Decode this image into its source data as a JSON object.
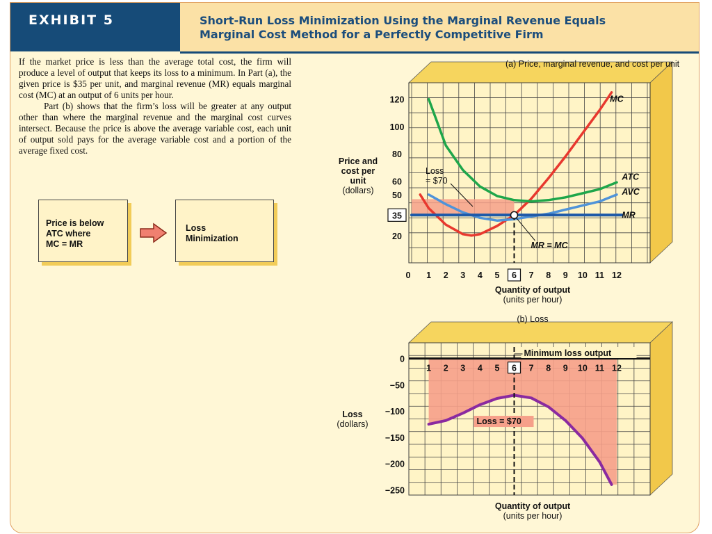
{
  "header": {
    "exhibit": "EXHIBIT 5",
    "title_line1": "Short-Run Loss Minimization Using the Marginal Revenue Equals",
    "title_line2": "Marginal Cost Method for a Perfectly Competitive Firm"
  },
  "text": {
    "para1": "If the market price is less than the average total cost, the firm will produce a level of output that keeps its loss to a minimum. In Part (a), the given price is $35 per unit, and marginal revenue (MR) equals marginal cost (MC) at an output of 6 units per hour.",
    "para2": "Part (b) shows that the firm’s loss will be greater at any output other than where the marginal revenue and the marginal cost curves intersect. Because the price is above the average variable cost, each unit of output sold pays for the average variable cost and a portion of the average fixed cost."
  },
  "flow": {
    "box1_l1": "Price is below",
    "box1_l2": "ATC where",
    "box1_l3": "MC = MR",
    "box2_l1": "Loss",
    "box2_l2": "Minimization"
  },
  "colors": {
    "mc": "#e8382e",
    "atc": "#1ea64a",
    "avc": "#4f93d9",
    "mr": "#1f5aa8",
    "loss": "#8a2aa0",
    "shade": "#f6a08a",
    "grid_bg": "#fff4c6",
    "box_shadow": "#f2cc58"
  },
  "chart_data": [
    {
      "type": "line",
      "title": "(a) Price, marginal revenue, and cost per unit",
      "xlabel_line1": "Quantity of output",
      "xlabel_line2": "(units per hour)",
      "ylabel_lines": [
        "Price and",
        "cost per",
        "unit",
        "(dollars)"
      ],
      "xlim": [
        0,
        12
      ],
      "ylim": [
        0,
        130
      ],
      "x_ticks": [
        "0",
        "1",
        "2",
        "3",
        "4",
        "5",
        "6",
        "7",
        "8",
        "9",
        "10",
        "11",
        "12"
      ],
      "y_ticks": [
        "20",
        "35",
        "50",
        "60",
        "80",
        "100",
        "120"
      ],
      "y_tick_values": [
        20,
        35,
        50,
        60,
        80,
        100,
        120
      ],
      "highlight_x": 6,
      "highlight_y": 35,
      "series": [
        {
          "name": "MC",
          "x": [
            0.5,
            1,
            2,
            3,
            3.5,
            4,
            5,
            6,
            7,
            8,
            9,
            10,
            11,
            11.7
          ],
          "y": [
            50,
            40,
            28,
            21,
            20,
            21,
            27,
            35,
            47,
            62,
            78,
            95,
            112,
            125
          ]
        },
        {
          "name": "ATC",
          "x": [
            1,
            2,
            3,
            4,
            5,
            6,
            7,
            8,
            9,
            10,
            11,
            12
          ],
          "y": [
            120,
            86,
            68,
            56,
            49,
            46,
            45,
            46,
            48,
            51,
            54,
            59
          ]
        },
        {
          "name": "AVC",
          "x": [
            1,
            2,
            3,
            4,
            5,
            6,
            7,
            8,
            9,
            10,
            11,
            12
          ],
          "y": [
            50,
            43,
            37,
            33,
            31,
            32,
            34,
            36,
            39,
            42,
            45,
            50
          ]
        },
        {
          "name": "MR",
          "x": [
            0,
            12.3
          ],
          "y": [
            35,
            35
          ]
        }
      ],
      "annotations": {
        "loss_label_l1": "Loss",
        "loss_label_l2": "= $70",
        "equilibrium_label": "MR = MC",
        "loss_area": {
          "x": [
            0,
            6
          ],
          "y": [
            35,
            46.7
          ]
        }
      }
    },
    {
      "type": "area",
      "title": "(b) Loss",
      "xlabel_line1": "Quantity of output",
      "xlabel_line2": "(units per hour)",
      "ylabel_lines": [
        "Loss",
        "(dollars)"
      ],
      "xlim": [
        0,
        12
      ],
      "ylim": [
        -260,
        30
      ],
      "x_ticks": [
        "1",
        "2",
        "3",
        "4",
        "5",
        "6",
        "7",
        "8",
        "9",
        "10",
        "11",
        "12"
      ],
      "y_ticks": [
        "0",
        "−50",
        "−100",
        "−150",
        "−200",
        "−250"
      ],
      "y_tick_values": [
        0,
        -50,
        -100,
        -150,
        -200,
        -250
      ],
      "highlight_x": 6,
      "series": [
        {
          "name": "Loss",
          "x": [
            1,
            2,
            3,
            4,
            5,
            6,
            7,
            8,
            9,
            10,
            11,
            11.7
          ],
          "y": [
            -125,
            -118,
            -104,
            -88,
            -76,
            -70,
            -75,
            -92,
            -118,
            -152,
            -197,
            -240
          ]
        }
      ],
      "annotations": {
        "min_label": "Minimum loss output",
        "loss_label": "Loss = $70"
      }
    }
  ]
}
